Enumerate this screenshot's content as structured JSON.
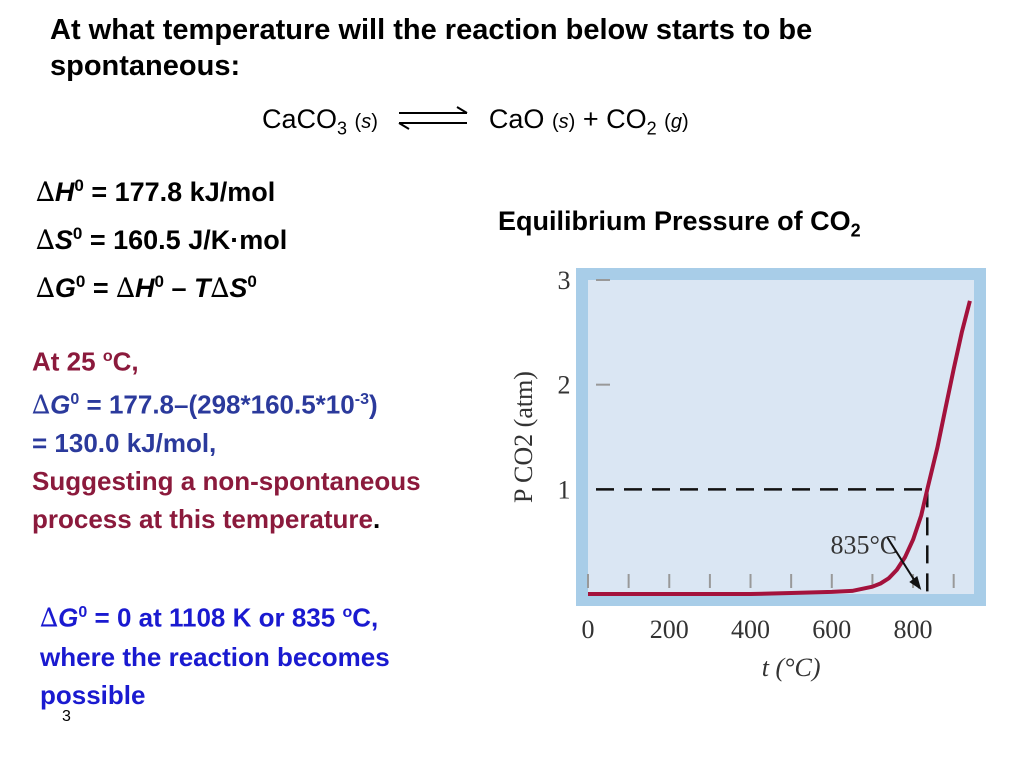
{
  "title": "At what temperature will the reaction below starts to be spontaneous:",
  "reaction": {
    "reactant": "CaCO",
    "reactant_sub": "3",
    "reactant_state": "s",
    "product1": "CaO",
    "product1_state": "s",
    "plus": "+",
    "product2": "CO",
    "product2_sub": "2",
    "product2_state": "g"
  },
  "equations": {
    "delta_h": {
      "symbol": "H",
      "sup": "0",
      "rhs": "= 177.8 kJ/mol"
    },
    "delta_s": {
      "symbol": "S",
      "sup": "0",
      "rhs_a": "= 160.5 J/K",
      "dot": "·",
      "rhs_b": "mol"
    },
    "delta_g": {
      "symbol": "G",
      "sup": "0",
      "eq": "=",
      "h": "H",
      "minus": "–",
      "t": "T",
      "s": "S"
    }
  },
  "calculation": {
    "at_label": "At 25",
    "deg_o": "o",
    "c_label": "C,",
    "g_symbol": "G",
    "g_sup": "0",
    "g_expr": "= 177.8–(298*160.5*10",
    "exp": "-3",
    "close": ")",
    "result": "= 130.0 kJ/mol,",
    "suggest_a": "Suggesting a non-spontaneous process at this temperature",
    "period": "."
  },
  "conclusion": {
    "g_symbol": "G",
    "g_sup": "0",
    "text_a": "= 0 at 1108 K or 835",
    "deg_o": "o",
    "text_b": "C, where the reaction becomes possible"
  },
  "chart_title": {
    "text": "Equilibrium Pressure of CO",
    "sub": "2"
  },
  "chart_data": {
    "type": "line",
    "title": "Equilibrium Pressure of CO2",
    "xlabel": "t (°C)",
    "ylabel": "P CO2 (atm)",
    "xlim": [
      0,
      950
    ],
    "ylim": [
      0,
      3
    ],
    "x_ticks": [
      0,
      200,
      400,
      600,
      800
    ],
    "y_ticks": [
      1,
      2,
      3
    ],
    "series": [
      {
        "x": [
          0,
          100,
          200,
          300,
          400,
          500,
          600,
          650,
          700,
          720,
          740,
          760,
          780,
          800,
          820,
          835,
          860,
          880,
          900,
          920,
          940
        ],
        "values": [
          0.0,
          0.0,
          0.0,
          0.0,
          0.0,
          0.01,
          0.02,
          0.03,
          0.07,
          0.1,
          0.15,
          0.23,
          0.35,
          0.52,
          0.75,
          1.0,
          1.4,
          1.78,
          2.15,
          2.5,
          2.8
        ]
      }
    ],
    "annotation": {
      "text": "835°C",
      "x": 835,
      "y": 1
    },
    "background": "#dae6f3",
    "frame_color": "#a8cde8",
    "line_color": "#a3123c"
  },
  "page_number": "3"
}
